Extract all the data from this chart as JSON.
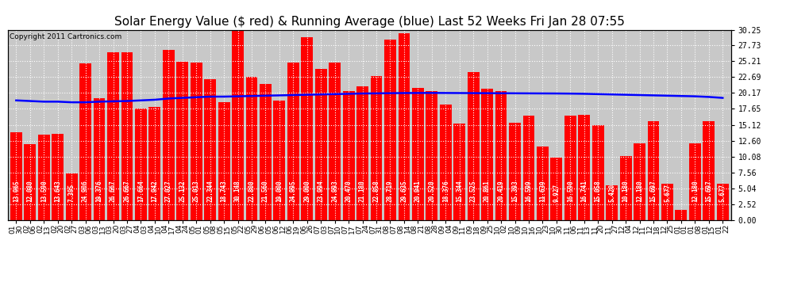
{
  "title": "Solar Energy Value ($ red) & Running Average (blue) Last 52 Weeks Fri Jan 28 07:55",
  "copyright": "Copyright 2011 Cartronics.com",
  "bar_color": "#ff0000",
  "line_color": "#0000ff",
  "bg_color": "#ffffff",
  "plot_bg_color": "#c8c8c8",
  "grid_color": "#ffffff",
  "ylim": [
    0,
    30.25
  ],
  "yticks": [
    0.0,
    2.52,
    5.04,
    7.56,
    10.08,
    12.6,
    15.12,
    17.65,
    20.17,
    22.69,
    25.21,
    27.73,
    30.25
  ],
  "categories": [
    "01-30",
    "02-06",
    "02-13",
    "02-20",
    "02-27",
    "03-06",
    "03-13",
    "03-20",
    "03-27",
    "04-03",
    "04-10",
    "04-17",
    "04-24",
    "05-01",
    "05-08",
    "05-15",
    "05-22",
    "05-29",
    "06-05",
    "06-12",
    "06-19",
    "06-26",
    "07-03",
    "07-10",
    "07-17",
    "07-24",
    "07-31",
    "08-07",
    "08-14",
    "08-21",
    "08-28",
    "09-04",
    "09-11",
    "09-18",
    "09-25",
    "10-02",
    "10-09",
    "10-16",
    "10-23",
    "10-30",
    "11-06",
    "11-13",
    "11-20",
    "11-27",
    "12-04",
    "12-11",
    "12-18",
    "12-25",
    "01-01",
    "01-08",
    "01-15",
    "01-22"
  ],
  "values": [
    13.965,
    12.08,
    13.59,
    13.643,
    7.395,
    24.906,
    19.376,
    26.667,
    26.667,
    17.664,
    17.942,
    27.027,
    25.132,
    25.013,
    22.344,
    18.743,
    30.148,
    22.8,
    21.56,
    19.0,
    24.995,
    29.0,
    23.994,
    24.993,
    20.47,
    21.18,
    22.858,
    28.719,
    29.635,
    20.941,
    20.52,
    18.376,
    15.344,
    23.525,
    20.861,
    20.419,
    15.393,
    16.599,
    11.639,
    9.927,
    16.59,
    16.741,
    15.058,
    5.42,
    10.18,
    12.18,
    15.697,
    5.677,
    1.577,
    12.18,
    15.697,
    5.677
  ],
  "running_avg": [
    19.0,
    18.9,
    18.8,
    18.8,
    18.7,
    18.7,
    18.8,
    18.85,
    18.9,
    19.0,
    19.1,
    19.3,
    19.4,
    19.5,
    19.6,
    19.6,
    19.65,
    19.7,
    19.75,
    19.8,
    19.85,
    19.9,
    19.95,
    20.0,
    20.05,
    20.1,
    20.12,
    20.15,
    20.17,
    20.18,
    20.19,
    20.18,
    20.17,
    20.16,
    20.15,
    20.14,
    20.13,
    20.12,
    20.11,
    20.1,
    20.08,
    20.05,
    20.0,
    19.95,
    19.9,
    19.85,
    19.8,
    19.75,
    19.7,
    19.65,
    19.55,
    19.4
  ],
  "title_fontsize": 11,
  "label_fontsize": 6,
  "tick_fontsize": 6.5,
  "ytick_fontsize": 7,
  "value_label_fontsize": 5.5
}
